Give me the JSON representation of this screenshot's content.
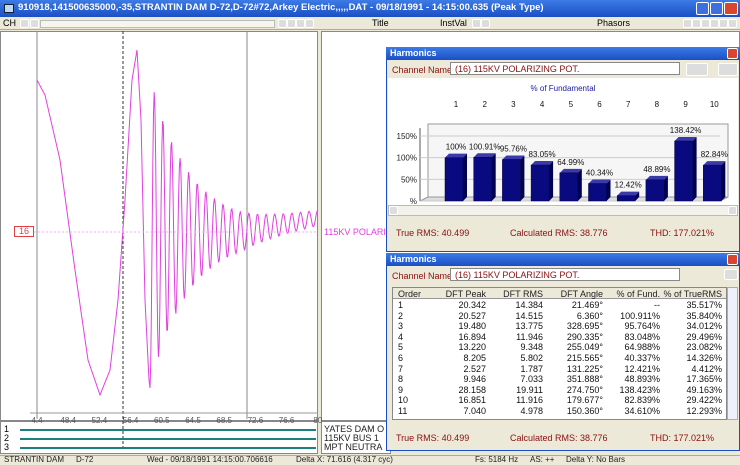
{
  "window_title": "910918,141500635000,-35,STRANTIN DAM   D-72,D-72#72,Arkey Electric,,,,,DAT - 09/18/1991 - 14:15:00.635 (Peak Type)",
  "toolbar": {
    "ch": "CH",
    "title": "Title",
    "instval": "InstVal",
    "phasors": "Phasors"
  },
  "waveform": {
    "channel_number": "16",
    "channel_label": "115KV POLARIZ",
    "x_labels": [
      "4.4",
      "48.4",
      "52.4",
      "56.4",
      "60.5",
      "64.5",
      "68.5",
      "72.6",
      "76.6",
      "80"
    ],
    "channels": [
      {
        "number": "1",
        "name": "YATES DAM O"
      },
      {
        "number": "2",
        "name": "115KV BUS 1"
      },
      {
        "number": "3",
        "name": "MPT NEUTRA"
      }
    ]
  },
  "harmonics_chart": {
    "title": "Harmonics",
    "channel_label": "Channel Name:",
    "channel": "(16) 115KV POLARIZING POT.",
    "chart_title": "% of Fundamental",
    "orders": [
      "1",
      "2",
      "3",
      "4",
      "5",
      "6",
      "7",
      "8",
      "9",
      "10"
    ],
    "values": [
      100,
      100.91,
      95.76,
      83.05,
      64.99,
      40.34,
      12.42,
      48.89,
      138.42,
      82.84
    ],
    "value_labels": [
      "100%",
      "100.91%",
      "95.76%",
      "83.05%",
      "64.99%",
      "40.34%",
      "12.42%",
      "48.89%",
      "138.42%",
      "82.84%"
    ],
    "ylim": [
      0,
      150
    ],
    "yticks": [
      {
        "value": 0,
        "label": "%"
      },
      {
        "value": 50,
        "label": "50%"
      },
      {
        "value": 100,
        "label": "100%"
      },
      {
        "value": 150,
        "label": "150%"
      }
    ],
    "true_rms": "True RMS: 40.499",
    "calculated_rms": "Calculated RMS: 38.776",
    "thd": "THD: 177.021%"
  },
  "harmonics_table": {
    "title": "Harmonics",
    "channel_label": "Channel Name:",
    "channel": "(16) 115KV POLARIZING POT.",
    "columns": [
      "Order",
      "DFT Peak",
      "DFT RMS",
      "DFT Angle",
      "% of Fund.",
      "% of TrueRMS"
    ],
    "rows": [
      [
        "1",
        "20.342",
        "14.384",
        "21.469°",
        "--",
        "35.517%"
      ],
      [
        "2",
        "20.527",
        "14.515",
        "6.360°",
        "100.911%",
        "35.840%"
      ],
      [
        "3",
        "19.480",
        "13.775",
        "328.695°",
        "95.764%",
        "34.012%"
      ],
      [
        "4",
        "16.894",
        "11.946",
        "290.335°",
        "83.048%",
        "29.496%"
      ],
      [
        "5",
        "13.220",
        "9.348",
        "255.049°",
        "64.988%",
        "23.082%"
      ],
      [
        "6",
        "8.205",
        "5.802",
        "215.565°",
        "40.337%",
        "14.326%"
      ],
      [
        "7",
        "2.527",
        "1.787",
        "131.225°",
        "12.421%",
        "4.412%"
      ],
      [
        "8",
        "9.946",
        "7.033",
        "351.888°",
        "48.893%",
        "17.365%"
      ],
      [
        "9",
        "28.158",
        "19.911",
        "274.750°",
        "138.423%",
        "49.163%"
      ],
      [
        "10",
        "16.851",
        "11.916",
        "179.677°",
        "82.839%",
        "29.422%"
      ],
      [
        "11",
        "7.040",
        "4.978",
        "150.360°",
        "34.610%",
        "12.293%"
      ]
    ],
    "true_rms": "True RMS: 40.499",
    "calculated_rms": "Calculated RMS: 38.776",
    "thd": "THD: 177.021%"
  },
  "status_bar": [
    "STRANTIN DAM",
    "D-72",
    "Wed - 09/18/1991 14:15:00.706616",
    "Delta X: 71.616 (4.317 cyc)",
    "Fs: 5184 Hz",
    "AS: ++",
    "Delta Y: No Bars"
  ]
}
